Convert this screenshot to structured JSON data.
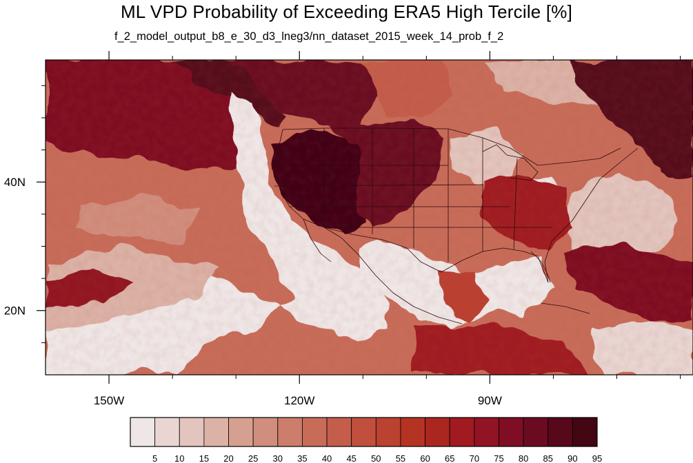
{
  "title": "ML VPD Probability of Exceeding ERA5 High Tercile [%]",
  "subtitle": "f_2_model_output_b8_e_30_d3_lneg3/nn_dataset_2015_week_14_prob_f_2",
  "map": {
    "lon_range": [
      -160,
      -58
    ],
    "lat_range": [
      10,
      59
    ],
    "lon_ticks": [
      {
        "value": -150,
        "label": "150W"
      },
      {
        "value": -120,
        "label": "120W"
      },
      {
        "value": -90,
        "label": "90W"
      }
    ],
    "lat_ticks": [
      {
        "value": 40,
        "label": "40N"
      },
      {
        "value": 20,
        "label": "20N"
      }
    ],
    "minor_lon_ticks": [
      -140,
      -130,
      -110,
      -100,
      -80,
      -70,
      -60
    ],
    "minor_lat_ticks": [
      15,
      25,
      30,
      35,
      45,
      50,
      55
    ],
    "palette": [
      "#efe7e7",
      "#e9d6d3",
      "#e2c5be",
      "#dcb2a7",
      "#d6a091",
      "#d18d7d",
      "#cc7d6b",
      "#c86c5a",
      "#c45d4b",
      "#c0503d",
      "#bb4130",
      "#b43323",
      "#ab2620",
      "#a01a20",
      "#911324",
      "#7f0e24",
      "#6b0b21",
      "#57081b",
      "#430613"
    ],
    "colorbar_labels": [
      "5",
      "10",
      "15",
      "20",
      "25",
      "30",
      "35",
      "40",
      "45",
      "50",
      "55",
      "60",
      "65",
      "70",
      "75",
      "80",
      "85",
      "90",
      "95"
    ]
  }
}
